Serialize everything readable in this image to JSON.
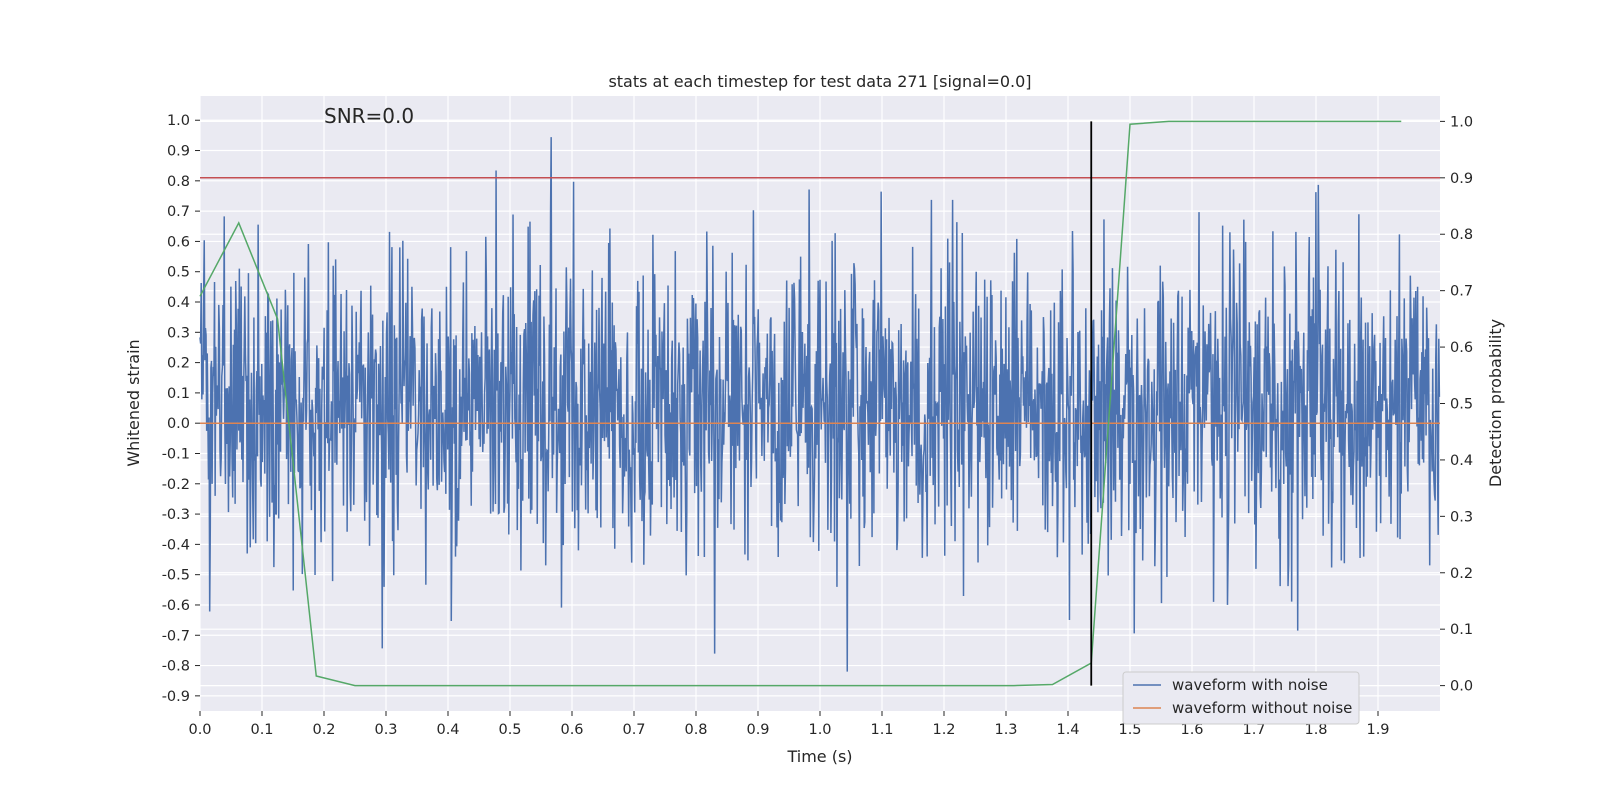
{
  "chart_data": {
    "type": "line",
    "title": "stats at each timestep for test data 271 [signal=0.0]",
    "xlabel": "Time (s)",
    "ylabel": "Whitened strain",
    "y2label": "Detection probability",
    "xlim": [
      0.0,
      2.0
    ],
    "ylim": [
      -0.95,
      1.08
    ],
    "y2lim": [
      -0.045,
      1.045
    ],
    "xticks": [
      0.0,
      0.1,
      0.2,
      0.3,
      0.4,
      0.5,
      0.6,
      0.7,
      0.8,
      0.9,
      1.0,
      1.1,
      1.2,
      1.3,
      1.4,
      1.5,
      1.6,
      1.7,
      1.8,
      1.9
    ],
    "yticks": [
      -0.9,
      -0.8,
      -0.7,
      -0.6,
      -0.5,
      -0.4,
      -0.3,
      -0.2,
      -0.1,
      0.0,
      0.1,
      0.2,
      0.3,
      0.4,
      0.5,
      0.6,
      0.7,
      0.8,
      0.9,
      1.0
    ],
    "y2ticks": [
      0.0,
      0.1,
      0.2,
      0.3,
      0.4,
      0.5,
      0.6,
      0.7,
      0.8,
      0.9,
      1.0
    ],
    "annotation": "SNR=0.0",
    "grid": true,
    "legend_position": "bottom-right",
    "series": [
      {
        "name": "waveform with noise",
        "axis": "left",
        "color": "#4c72b0",
        "generated": "noise",
        "n_points": 2048,
        "x_range": [
          0.0,
          2.0
        ],
        "amplitude_range": [
          -0.82,
          1.0
        ]
      },
      {
        "name": "waveform without noise",
        "axis": "left",
        "color": "#dd8452",
        "x": [
          0.0,
          2.0
        ],
        "y": [
          0.0,
          0.0
        ]
      },
      {
        "name": "detection probability",
        "axis": "right",
        "color": "#55a868",
        "x": [
          0.0,
          0.0625,
          0.125,
          0.1875,
          0.25,
          0.3125,
          0.375,
          0.4375,
          0.5,
          0.5625,
          0.625,
          0.6875,
          0.75,
          0.8125,
          0.875,
          0.9375,
          1.0,
          1.0625,
          1.125,
          1.1875,
          1.25,
          1.3125,
          1.375,
          1.4375,
          1.5,
          1.5625,
          1.625,
          1.6875,
          1.75,
          1.8125,
          1.875,
          1.9375
        ],
        "y": [
          0.69,
          0.82,
          0.65,
          0.017,
          0.0,
          0.0,
          0.0,
          0.0,
          0.0,
          0.0,
          0.0,
          0.0,
          0.0,
          0.0,
          0.0,
          0.0,
          0.0,
          0.0,
          0.0,
          0.0,
          0.0,
          0.0,
          0.002,
          0.04,
          0.995,
          1.0,
          1.0,
          1.0,
          1.0,
          1.0,
          1.0,
          1.0
        ]
      },
      {
        "name": "threshold",
        "axis": "right",
        "color": "#c44e52",
        "x": [
          0.0,
          2.0
        ],
        "y": [
          0.9,
          0.9
        ]
      },
      {
        "name": "detection time",
        "axis": "right",
        "color": "#000000",
        "x": [
          1.4375,
          1.4375
        ],
        "y": [
          0.0,
          1.0
        ]
      }
    ],
    "legend": [
      "waveform with noise",
      "waveform without noise"
    ]
  }
}
